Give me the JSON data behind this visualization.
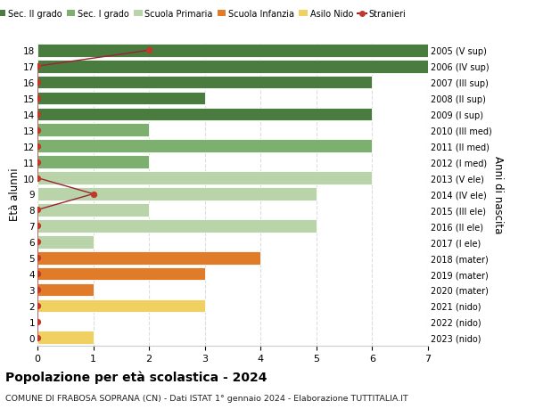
{
  "ages": [
    18,
    17,
    16,
    15,
    14,
    13,
    12,
    11,
    10,
    9,
    8,
    7,
    6,
    5,
    4,
    3,
    2,
    1,
    0
  ],
  "right_labels": [
    "2005 (V sup)",
    "2006 (IV sup)",
    "2007 (III sup)",
    "2008 (II sup)",
    "2009 (I sup)",
    "2010 (III med)",
    "2011 (II med)",
    "2012 (I med)",
    "2013 (V ele)",
    "2014 (IV ele)",
    "2015 (III ele)",
    "2016 (II ele)",
    "2017 (I ele)",
    "2018 (mater)",
    "2019 (mater)",
    "2020 (mater)",
    "2021 (nido)",
    "2022 (nido)",
    "2023 (nido)"
  ],
  "bar_values": [
    7,
    7,
    6,
    3,
    6,
    2,
    6,
    2,
    6,
    5,
    2,
    5,
    1,
    4,
    3,
    1,
    3,
    0,
    1
  ],
  "bar_colors": [
    "#4a7c3f",
    "#4a7c3f",
    "#4a7c3f",
    "#4a7c3f",
    "#4a7c3f",
    "#7daf6e",
    "#7daf6e",
    "#7daf6e",
    "#b8d4a8",
    "#b8d4a8",
    "#b8d4a8",
    "#b8d4a8",
    "#b8d4a8",
    "#e07b2a",
    "#e07b2a",
    "#e07b2a",
    "#f0d060",
    "#f0d060",
    "#f0d060"
  ],
  "stranieri_values_by_age": {
    "18": 2,
    "17": 0,
    "16": 0,
    "15": 0,
    "14": 0,
    "13": 0,
    "12": 0,
    "11": 0,
    "10": 0,
    "9": 1,
    "8": 0,
    "7": 0,
    "6": 0,
    "5": 0,
    "4": 0,
    "3": 0,
    "2": 0,
    "1": 0,
    "0": 0
  },
  "legend_labels": [
    "Sec. II grado",
    "Sec. I grado",
    "Scuola Primaria",
    "Scuola Infanzia",
    "Asilo Nido",
    "Stranieri"
  ],
  "legend_colors": [
    "#4a7c3f",
    "#7daf6e",
    "#b8d4a8",
    "#e07b2a",
    "#f0d060",
    "#c0392b"
  ],
  "ylabel_left": "Età alunni",
  "ylabel_right": "Anni di nascita",
  "title": "Popolazione per età scolastica - 2024",
  "subtitle": "COMUNE DI FRABOSA SOPRANA (CN) - Dati ISTAT 1° gennaio 2024 - Elaborazione TUTTITALIA.IT",
  "xlim": [
    0,
    7
  ],
  "background_color": "#ffffff",
  "grid_color": "#dddddd",
  "stranieri_line_color": "#9b2335",
  "stranieri_marker_color": "#c0392b"
}
